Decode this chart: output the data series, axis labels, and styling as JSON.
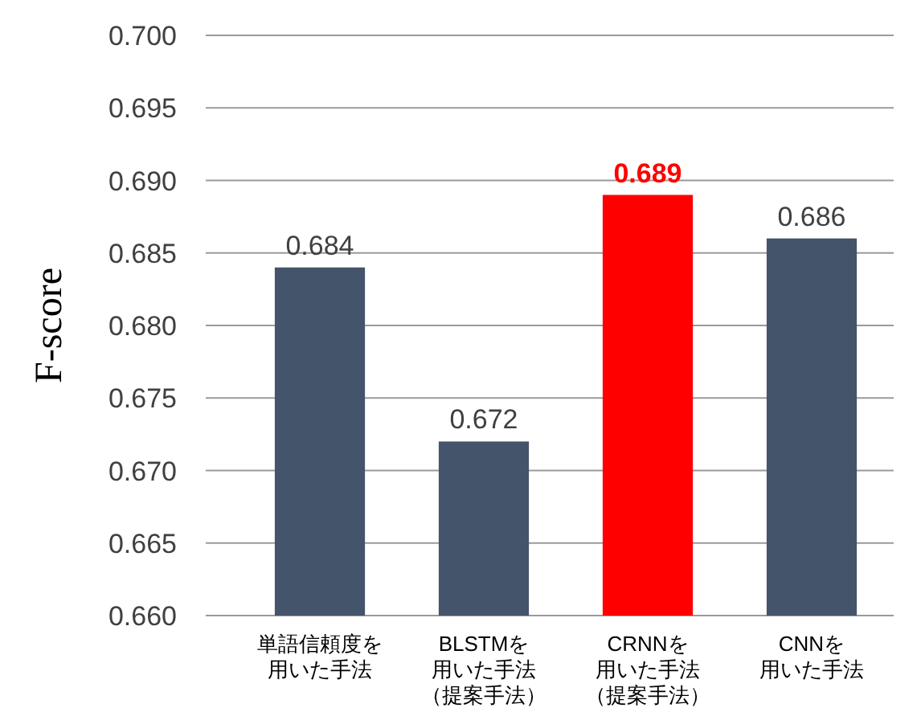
{
  "chart_data": {
    "type": "bar",
    "ylabel": "F-score",
    "categories": [
      "単語信頼度を用いた手法",
      "BLSTMを用いた手法（提案手法）",
      "CRNNを用いた手法（提案手法）",
      "CNNを用いた手法"
    ],
    "values": [
      0.684,
      0.672,
      0.689,
      0.686
    ],
    "colors": [
      "#44546a",
      "#44546a",
      "#ff0000",
      "#44546a"
    ],
    "ylim": [
      0.66,
      0.7
    ],
    "yticks": [
      {
        "value": 0.66,
        "label": "0.660"
      },
      {
        "value": 0.665,
        "label": "0.665"
      },
      {
        "value": 0.67,
        "label": "0.670"
      },
      {
        "value": 0.675,
        "label": "0.675"
      },
      {
        "value": 0.68,
        "label": "0.680"
      },
      {
        "value": 0.685,
        "label": "0.685"
      },
      {
        "value": 0.69,
        "label": "0.690"
      },
      {
        "value": 0.695,
        "label": "0.695"
      },
      {
        "value": 0.7,
        "label": "0.700"
      }
    ],
    "grid": "y",
    "data_labels": true
  }
}
